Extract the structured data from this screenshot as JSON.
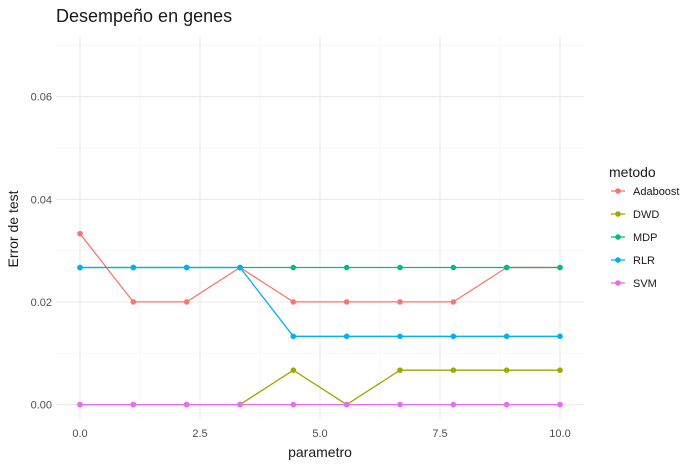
{
  "chart_data": {
    "type": "line",
    "title": "Desempeño en genes",
    "xlabel": "parametro",
    "ylabel": "Error de test",
    "xlim": [
      -0.5,
      10.5
    ],
    "ylim": [
      -0.003,
      0.072
    ],
    "xticks": [
      0,
      2.5,
      5,
      7.5,
      10
    ],
    "xtick_labels": [
      "0.0",
      "2.5",
      "5.0",
      "7.5",
      "10.0"
    ],
    "yticks": [
      0,
      0.02,
      0.04,
      0.06
    ],
    "ytick_labels": [
      "0.00",
      "0.02",
      "0.04",
      "0.06"
    ],
    "grid": true,
    "legend_title": "metodo",
    "legend_position": "right",
    "x": [
      0,
      1.111,
      2.222,
      3.333,
      4.444,
      5.556,
      6.667,
      7.778,
      8.889,
      10
    ],
    "series": [
      {
        "name": "Adaboost",
        "color": "#F8766D",
        "values": [
          0.0333,
          0.02,
          0.02,
          0.0267,
          0.02,
          0.02,
          0.02,
          0.02,
          0.0267,
          0.0267
        ]
      },
      {
        "name": "DWD",
        "color": "#A3A500",
        "values": [
          0,
          0,
          0,
          0,
          0.0067,
          0,
          0.0067,
          0.0067,
          0.0067,
          0.0067
        ]
      },
      {
        "name": "MDP",
        "color": "#00BF7D",
        "values": [
          0.0267,
          0.0267,
          0.0267,
          0.0267,
          0.0267,
          0.0267,
          0.0267,
          0.0267,
          0.0267,
          0.0267
        ]
      },
      {
        "name": "RLR",
        "color": "#00B0F6",
        "values": [
          0.0267,
          0.0267,
          0.0267,
          0.0267,
          0.0133,
          0.0133,
          0.0133,
          0.0133,
          0.0133,
          0.0133
        ]
      },
      {
        "name": "SVM",
        "color": "#E76BF3",
        "values": [
          0,
          0,
          0,
          0,
          0,
          0,
          0,
          0,
          0,
          0
        ]
      }
    ]
  }
}
